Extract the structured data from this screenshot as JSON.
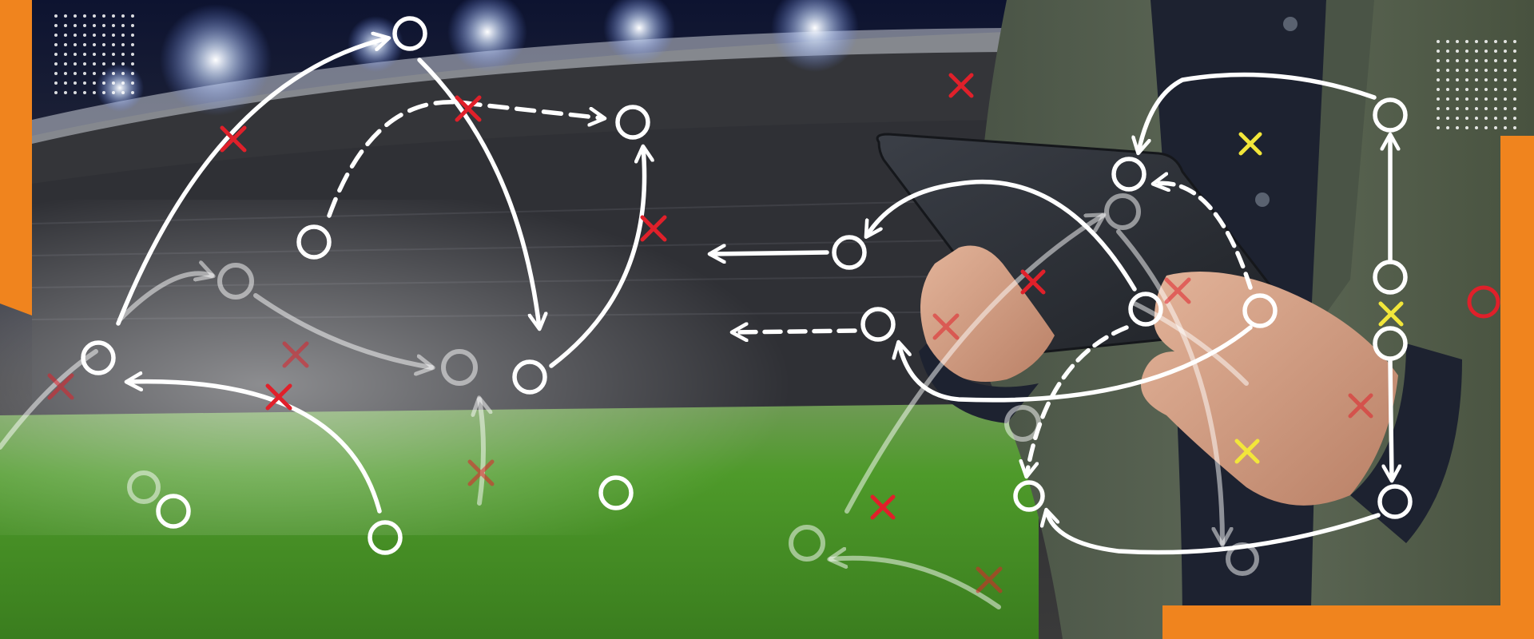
{
  "banner": {
    "description_icons": [
      "stadium",
      "floodlights",
      "grass-pitch",
      "tablet",
      "hand",
      "tactics-overlay"
    ],
    "colors": {
      "accent_orange": "#F0841E",
      "marker_red": "#E0202A",
      "marker_yellow": "#F2E63A",
      "chalk_white": "#FFFFFF",
      "pitch_green": "#4E9A2A",
      "jacket_olive": "#56604F",
      "tablet_dark": "#2A2D33"
    }
  }
}
